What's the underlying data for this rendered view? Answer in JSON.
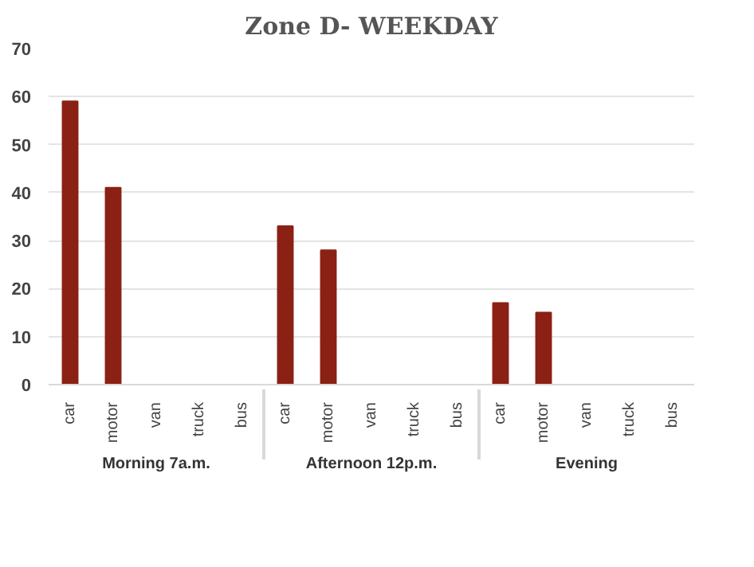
{
  "chart_data": {
    "type": "bar",
    "title": "Zone D- WEEKDAY",
    "categories": [
      "car",
      "motor",
      "van",
      "truck",
      "bus",
      "car",
      "motor",
      "van",
      "truck",
      "bus",
      "car",
      "motor",
      "van",
      "truck",
      "bus"
    ],
    "annotations": [
      "Morning 7a.m.",
      "Afternoon 12p.m.",
      "Evening"
    ],
    "values": [
      59,
      41,
      0,
      0,
      0,
      33,
      28,
      0,
      0,
      0,
      17,
      15,
      0,
      0,
      0
    ],
    "color": "#8b2114",
    "ylim": [
      0,
      70
    ],
    "yticks": [
      0,
      10,
      20,
      30,
      40,
      50,
      60,
      70
    ],
    "grid": "y"
  }
}
